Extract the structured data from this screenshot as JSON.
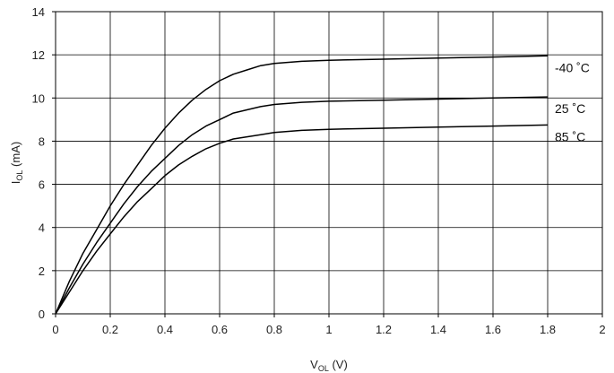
{
  "chart_data": {
    "type": "line",
    "xlabel": {
      "main": "V",
      "sub": "OL",
      "unit": " (V)"
    },
    "ylabel": {
      "main": "I",
      "sub": "OL",
      "unit": " (mA)"
    },
    "xlim": [
      0,
      2
    ],
    "ylim": [
      0,
      14
    ],
    "x_ticks": [
      "0",
      "0.2",
      "0.4",
      "0.6",
      "0.8",
      "1",
      "1.2",
      "1.4",
      "1.6",
      "1.8",
      "2"
    ],
    "y_ticks": [
      "0",
      "2",
      "4",
      "6",
      "8",
      "10",
      "12",
      "14"
    ],
    "grid": true,
    "series": [
      {
        "name": "-40 ˚C",
        "x": [
          0,
          0.05,
          0.1,
          0.15,
          0.2,
          0.25,
          0.3,
          0.35,
          0.4,
          0.45,
          0.5,
          0.55,
          0.6,
          0.65,
          0.7,
          0.75,
          0.8,
          0.9,
          1.0,
          1.2,
          1.4,
          1.6,
          1.8
        ],
        "y": [
          0,
          1.5,
          2.8,
          3.9,
          5.0,
          6.0,
          6.9,
          7.8,
          8.6,
          9.3,
          9.9,
          10.4,
          10.8,
          11.1,
          11.3,
          11.5,
          11.6,
          11.7,
          11.75,
          11.8,
          11.85,
          11.9,
          11.95
        ]
      },
      {
        "name": "25 ˚C",
        "x": [
          0,
          0.05,
          0.1,
          0.15,
          0.2,
          0.25,
          0.3,
          0.35,
          0.4,
          0.45,
          0.5,
          0.55,
          0.6,
          0.65,
          0.7,
          0.75,
          0.8,
          0.9,
          1.0,
          1.2,
          1.4,
          1.6,
          1.8
        ],
        "y": [
          0,
          1.2,
          2.3,
          3.3,
          4.2,
          5.1,
          5.9,
          6.6,
          7.2,
          7.8,
          8.3,
          8.7,
          9.0,
          9.3,
          9.45,
          9.6,
          9.7,
          9.8,
          9.85,
          9.9,
          9.95,
          10.0,
          10.05
        ]
      },
      {
        "name": "85 ˚C",
        "x": [
          0,
          0.05,
          0.1,
          0.15,
          0.2,
          0.25,
          0.3,
          0.35,
          0.4,
          0.45,
          0.5,
          0.55,
          0.6,
          0.65,
          0.7,
          0.75,
          0.8,
          0.9,
          1.0,
          1.2,
          1.4,
          1.6,
          1.8
        ],
        "y": [
          0,
          1.0,
          2.0,
          2.9,
          3.7,
          4.5,
          5.2,
          5.8,
          6.4,
          6.9,
          7.3,
          7.65,
          7.9,
          8.1,
          8.2,
          8.3,
          8.4,
          8.5,
          8.55,
          8.6,
          8.65,
          8.7,
          8.75
        ]
      }
    ]
  }
}
